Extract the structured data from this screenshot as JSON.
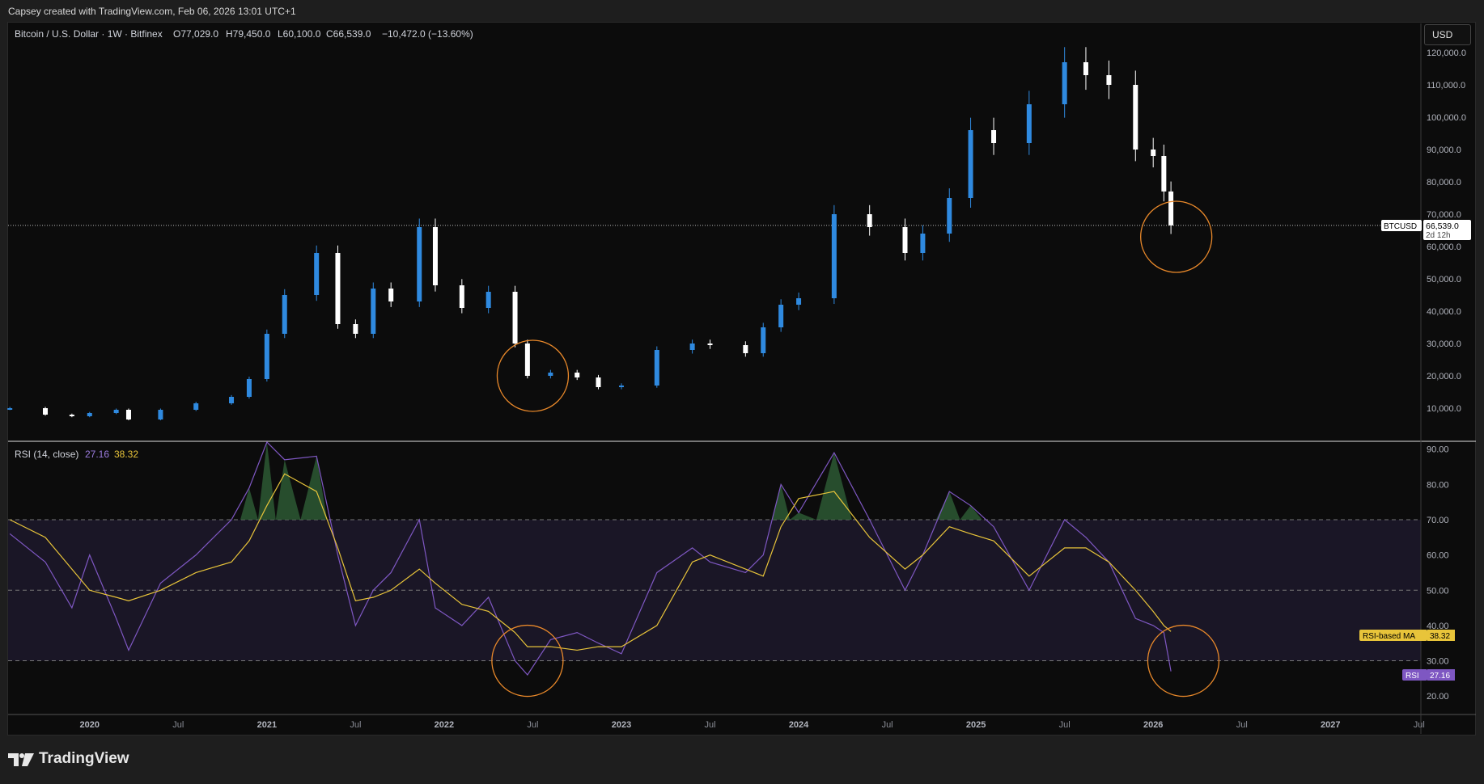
{
  "caption": "Capsey created with TradingView.com, Feb 06, 2026 13:01 UTC+1",
  "brand": "TradingView",
  "currency_button": "USD",
  "colors": {
    "up": "#2f8ae0",
    "down": "#ffffff",
    "rsi": "#7e57c2",
    "rsi_ma": "#e8c43a",
    "circle": "#e8882a",
    "band": "#1a1626"
  },
  "chart_data": [
    {
      "type": "candlestick",
      "legend": {
        "symbol": "Bitcoin / U.S. Dollar · 1W · Bitfinex",
        "open": "O77,029.0",
        "high": "H79,450.0",
        "low": "L60,100.0",
        "close": "C66,539.0",
        "change": "−10,472.0 (−13.60%)"
      },
      "ylim": [
        0,
        127000
      ],
      "yticks": [
        "10,000.0",
        "20,000.0",
        "30,000.0",
        "40,000.0",
        "50,000.0",
        "60,000.0",
        "70,000.0",
        "80,000.0",
        "90,000.0",
        "100,000.0",
        "110,000.0",
        "120,000.0"
      ],
      "ytick_values": [
        10000,
        20000,
        30000,
        40000,
        50000,
        60000,
        70000,
        80000,
        90000,
        100000,
        110000,
        120000
      ],
      "last_price": 66539,
      "last_price_label": "66,539.0",
      "countdown": "2d 12h",
      "symbol_tag": "BTCUSD",
      "x": [
        2019.55,
        2019.75,
        2019.9,
        2020.0,
        2020.15,
        2020.22,
        2020.4,
        2020.6,
        2020.8,
        2020.9,
        2021.0,
        2021.1,
        2021.28,
        2021.4,
        2021.5,
        2021.6,
        2021.7,
        2021.86,
        2021.95,
        2022.1,
        2022.25,
        2022.4,
        2022.47,
        2022.6,
        2022.75,
        2022.87,
        2023.0,
        2023.2,
        2023.4,
        2023.5,
        2023.7,
        2023.8,
        2023.9,
        2024.0,
        2024.2,
        2024.4,
        2024.6,
        2024.7,
        2024.85,
        2024.97,
        2025.1,
        2025.3,
        2025.5,
        2025.62,
        2025.75,
        2025.9,
        2026.0,
        2026.06,
        2026.1
      ],
      "close": [
        10000,
        8000,
        7500,
        8500,
        9500,
        6500,
        9500,
        11500,
        13500,
        19000,
        33000,
        45000,
        58000,
        36000,
        33000,
        47000,
        43000,
        66000,
        48000,
        41000,
        46000,
        30000,
        20000,
        21000,
        19500,
        16500,
        17000,
        28000,
        30000,
        29500,
        27000,
        35000,
        42000,
        44000,
        70000,
        66000,
        58000,
        64000,
        75000,
        96000,
        92000,
        104000,
        117000,
        113000,
        110000,
        90000,
        88000,
        77029,
        66539
      ],
      "highlight_circle": {
        "x": 2026.13,
        "y": 63000
      },
      "highlight_circle_2": {
        "x": 2022.5,
        "y": 20000
      }
    },
    {
      "type": "line",
      "legend": {
        "title": "RSI (14, close)",
        "rsi_value": "27.16",
        "ma_value": "38.32"
      },
      "ylim": [
        15,
        92
      ],
      "yticks": [
        "20.00",
        "30.00",
        "40.00",
        "50.00",
        "60.00",
        "70.00",
        "80.00",
        "90.00"
      ],
      "ytick_values": [
        20,
        30,
        40,
        50,
        60,
        70,
        80,
        90
      ],
      "bands": [
        30,
        50,
        70
      ],
      "series": [
        {
          "name": "RSI",
          "values": [
            66,
            58,
            45,
            60,
            42,
            33,
            52,
            60,
            70,
            79,
            92,
            87,
            88,
            60,
            40,
            50,
            55,
            70,
            45,
            40,
            48,
            30,
            26,
            36,
            38,
            35,
            32,
            55,
            62,
            58,
            55,
            60,
            80,
            72,
            89,
            70,
            50,
            60,
            78,
            74,
            68,
            50,
            70,
            65,
            58,
            42,
            40,
            38,
            27
          ]
        },
        {
          "name": "RSI-based MA",
          "values": [
            70,
            65,
            56,
            50,
            48,
            47,
            50,
            55,
            58,
            64,
            74,
            83,
            78,
            62,
            47,
            48,
            50,
            56,
            52,
            46,
            44,
            38,
            34,
            34,
            33,
            34,
            34,
            40,
            58,
            60,
            56,
            54,
            68,
            76,
            78,
            65,
            56,
            60,
            68,
            66,
            64,
            54,
            62,
            62,
            58,
            50,
            44,
            40,
            38.32
          ]
        }
      ],
      "last_labels": {
        "ma_tag": "RSI-based MA",
        "ma_value": "38.32",
        "rsi_tag": "RSI",
        "rsi_value": "27.16"
      },
      "highlight_circle": {
        "x": 2026.17,
        "y": 30
      },
      "highlight_circle_2": {
        "x": 2022.47,
        "y": 30
      }
    }
  ],
  "x_axis": {
    "xlim": [
      2019.54,
      2027.51
    ],
    "years": [
      {
        "label": "2020",
        "x": 2020.0
      },
      {
        "label": "2021",
        "x": 2021.0
      },
      {
        "label": "2022",
        "x": 2022.0
      },
      {
        "label": "2023",
        "x": 2023.0
      },
      {
        "label": "2024",
        "x": 2024.0
      },
      {
        "label": "2025",
        "x": 2025.0
      },
      {
        "label": "2026",
        "x": 2026.0
      },
      {
        "label": "2027",
        "x": 2027.0
      }
    ],
    "months": [
      {
        "label": "Jul",
        "x": 2020.5
      },
      {
        "label": "Jul",
        "x": 2021.5
      },
      {
        "label": "Jul",
        "x": 2022.5
      },
      {
        "label": "Jul",
        "x": 2023.5
      },
      {
        "label": "Jul",
        "x": 2024.5
      },
      {
        "label": "Jul",
        "x": 2025.5
      },
      {
        "label": "Jul",
        "x": 2026.5
      },
      {
        "label": "Jul",
        "x": 2027.5
      }
    ]
  }
}
